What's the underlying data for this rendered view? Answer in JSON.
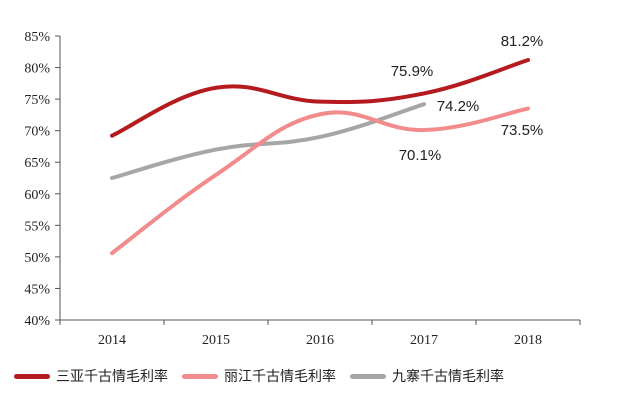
{
  "chart_data": {
    "type": "line",
    "x": [
      "2014",
      "2015",
      "2016",
      "2017",
      "2018"
    ],
    "ylim": [
      40,
      85
    ],
    "yticks": [
      "40%",
      "45%",
      "50%",
      "55%",
      "60%",
      "65%",
      "70%",
      "75%",
      "80%",
      "85%"
    ],
    "grid": false,
    "legend_position": "bottom",
    "series": [
      {
        "name": "三亚千古情毛利率",
        "color": "#b51a1f",
        "values": [
          69.2,
          76.8,
          74.6,
          75.9,
          81.2
        ]
      },
      {
        "name": "丽江千古情毛利率",
        "color": "#f28b8b",
        "values": [
          50.6,
          63.0,
          72.6,
          70.1,
          73.5
        ]
      },
      {
        "name": "九寨千古情毛利率",
        "color": "#a6a6a6",
        "values": [
          62.5,
          67.0,
          69.0,
          74.2,
          null
        ]
      }
    ],
    "annotations": [
      "75.9%",
      "81.2%",
      "74.2%",
      "70.1%",
      "73.5%"
    ]
  }
}
